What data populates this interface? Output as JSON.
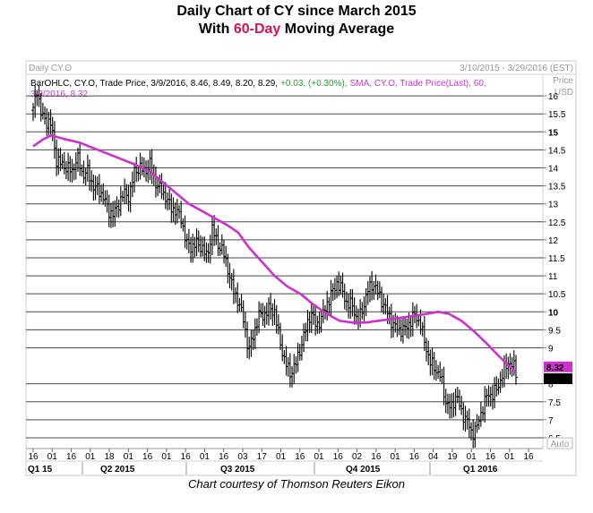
{
  "title": {
    "line1": "Daily Chart of CY since March 2015",
    "line2_prefix": "With ",
    "line2_highlight": "60-Day",
    "line2_suffix": " Moving Average"
  },
  "credit": "Chart courtesy of Thomson Reuters Eikon",
  "chart_data": {
    "type": "line",
    "panel_label": "Daily CY.O",
    "date_range": "3/10/2015 - 3/29/2016 (EST)",
    "legend": {
      "bar_prefix": "BarOHLC, CY.O, Trade Price, 3/9/2016, 8.46, 8.49, 8.20, 8.29,",
      "bar_change": "+0.03, (+0.30%),",
      "sma_text": "SMA, CY.O, Trade Price(Last), 60,",
      "sma_line2": "3/9/2016, 8.32"
    },
    "price_header": [
      "Price",
      "USD"
    ],
    "auto_label": "Auto",
    "ylim": [
      6.2,
      16.6
    ],
    "yticks": [
      {
        "v": 16,
        "label": "16",
        "bold": false
      },
      {
        "v": 15.5,
        "label": "15.5",
        "bold": false
      },
      {
        "v": 15,
        "label": "15",
        "bold": true
      },
      {
        "v": 14.5,
        "label": "14.5",
        "bold": false
      },
      {
        "v": 14,
        "label": "14",
        "bold": false
      },
      {
        "v": 13.5,
        "label": "13.5",
        "bold": false
      },
      {
        "v": 13,
        "label": "13",
        "bold": false
      },
      {
        "v": 12.5,
        "label": "12.5",
        "bold": false
      },
      {
        "v": 12,
        "label": "12",
        "bold": false
      },
      {
        "v": 11.5,
        "label": "11.5",
        "bold": false
      },
      {
        "v": 11,
        "label": "11",
        "bold": false
      },
      {
        "v": 10.5,
        "label": "10.5",
        "bold": false
      },
      {
        "v": 10,
        "label": "10",
        "bold": true
      },
      {
        "v": 9.5,
        "label": "9.5",
        "bold": false
      },
      {
        "v": 9,
        "label": "9",
        "bold": false
      },
      {
        "v": 8,
        "label": "8",
        "bold": false
      },
      {
        "v": 7.5,
        "label": "7.5",
        "bold": false
      },
      {
        "v": 7,
        "label": "7",
        "bold": false
      },
      {
        "v": 6.5,
        "label": "6.5",
        "bold": false
      }
    ],
    "last_labels": [
      {
        "label": "8.32",
        "value": 8.32,
        "color": "#cc33cc"
      },
      {
        "label": "8.29",
        "value": 8.29,
        "color": "#000000"
      }
    ],
    "xticks": [
      "16",
      "01",
      "16",
      "01",
      "18",
      "01",
      "16",
      "01",
      "16",
      "01",
      "16",
      "03",
      "17",
      "01",
      "16",
      "01",
      "16",
      "02",
      "16",
      "01",
      "16",
      "04",
      "19",
      "01",
      "16",
      "01",
      "16"
    ],
    "quarters": [
      "Q1 15",
      "Q2 2015",
      "Q3 2015",
      "Q4 2015",
      "Q1 2016"
    ],
    "series": [
      {
        "name": "BarOHLC, CY.O",
        "color": "#000000",
        "points": [
          [
            0,
            15.6
          ],
          [
            3,
            16.2
          ],
          [
            6,
            15.5
          ],
          [
            10,
            15.3
          ],
          [
            14,
            15.2
          ],
          [
            18,
            14.2
          ],
          [
            22,
            14.1
          ],
          [
            26,
            14.0
          ],
          [
            30,
            13.9
          ],
          [
            34,
            14.3
          ],
          [
            38,
            13.8
          ],
          [
            42,
            13.9
          ],
          [
            46,
            13.5
          ],
          [
            50,
            13.4
          ],
          [
            54,
            13.2
          ],
          [
            58,
            12.8
          ],
          [
            62,
            12.7
          ],
          [
            66,
            13.0
          ],
          [
            70,
            13.3
          ],
          [
            74,
            13.2
          ],
          [
            78,
            13.9
          ],
          [
            82,
            14.0
          ],
          [
            86,
            13.9
          ],
          [
            90,
            14.1
          ],
          [
            94,
            13.6
          ],
          [
            98,
            13.4
          ],
          [
            102,
            13.2
          ],
          [
            106,
            12.9
          ],
          [
            110,
            12.8
          ],
          [
            114,
            12.6
          ],
          [
            118,
            11.9
          ],
          [
            122,
            11.8
          ],
          [
            126,
            11.9
          ],
          [
            130,
            11.8
          ],
          [
            134,
            11.5
          ],
          [
            138,
            12.3
          ],
          [
            142,
            11.9
          ],
          [
            146,
            11.7
          ],
          [
            150,
            11.2
          ],
          [
            154,
            10.6
          ],
          [
            158,
            10.3
          ],
          [
            162,
            9.8
          ],
          [
            166,
            8.9
          ],
          [
            170,
            9.4
          ],
          [
            174,
            9.9
          ],
          [
            178,
            9.9
          ],
          [
            182,
            10.1
          ],
          [
            186,
            10.0
          ],
          [
            190,
            9.2
          ],
          [
            194,
            8.6
          ],
          [
            198,
            8.3
          ],
          [
            202,
            8.5
          ],
          [
            206,
            9.0
          ],
          [
            210,
            9.5
          ],
          [
            214,
            10.0
          ],
          [
            218,
            9.6
          ],
          [
            222,
            9.8
          ],
          [
            226,
            10.2
          ],
          [
            230,
            10.5
          ],
          [
            234,
            10.8
          ],
          [
            238,
            10.6
          ],
          [
            242,
            10.2
          ],
          [
            246,
            10.2
          ],
          [
            250,
            9.7
          ],
          [
            254,
            10.1
          ],
          [
            258,
            10.6
          ],
          [
            262,
            10.8
          ],
          [
            266,
            10.5
          ],
          [
            270,
            10.2
          ],
          [
            274,
            9.9
          ],
          [
            278,
            9.6
          ],
          [
            282,
            9.5
          ],
          [
            286,
            9.5
          ],
          [
            290,
            9.7
          ],
          [
            294,
            9.9
          ],
          [
            298,
            9.7
          ],
          [
            302,
            9.1
          ],
          [
            306,
            8.6
          ],
          [
            310,
            8.4
          ],
          [
            314,
            8.2
          ],
          [
            318,
            7.5
          ],
          [
            322,
            7.3
          ],
          [
            326,
            7.7
          ],
          [
            330,
            7.2
          ],
          [
            334,
            7.0
          ],
          [
            338,
            6.6
          ],
          [
            342,
            6.8
          ],
          [
            346,
            7.3
          ],
          [
            350,
            7.7
          ],
          [
            354,
            7.7
          ],
          [
            358,
            7.9
          ],
          [
            362,
            8.3
          ],
          [
            366,
            8.6
          ],
          [
            370,
            8.5
          ],
          [
            372,
            8.29
          ]
        ]
      },
      {
        "name": "SMA 60",
        "color": "#cc33cc",
        "points": [
          [
            0,
            14.6
          ],
          [
            8,
            14.8
          ],
          [
            14,
            14.9
          ],
          [
            24,
            14.8
          ],
          [
            36,
            14.7
          ],
          [
            50,
            14.5
          ],
          [
            64,
            14.3
          ],
          [
            78,
            14.1
          ],
          [
            90,
            13.9
          ],
          [
            100,
            13.6
          ],
          [
            110,
            13.3
          ],
          [
            120,
            13.0
          ],
          [
            130,
            12.8
          ],
          [
            140,
            12.6
          ],
          [
            150,
            12.4
          ],
          [
            158,
            12.2
          ],
          [
            166,
            11.8
          ],
          [
            176,
            11.4
          ],
          [
            186,
            11.0
          ],
          [
            196,
            10.7
          ],
          [
            206,
            10.5
          ],
          [
            216,
            10.2
          ],
          [
            226,
            9.95
          ],
          [
            236,
            9.75
          ],
          [
            246,
            9.7
          ],
          [
            256,
            9.7
          ],
          [
            266,
            9.75
          ],
          [
            276,
            9.8
          ],
          [
            286,
            9.85
          ],
          [
            296,
            9.9
          ],
          [
            304,
            9.95
          ],
          [
            312,
            10.0
          ],
          [
            320,
            9.95
          ],
          [
            330,
            9.75
          ],
          [
            340,
            9.45
          ],
          [
            350,
            9.1
          ],
          [
            358,
            8.8
          ],
          [
            366,
            8.52
          ],
          [
            372,
            8.32
          ]
        ]
      }
    ]
  }
}
